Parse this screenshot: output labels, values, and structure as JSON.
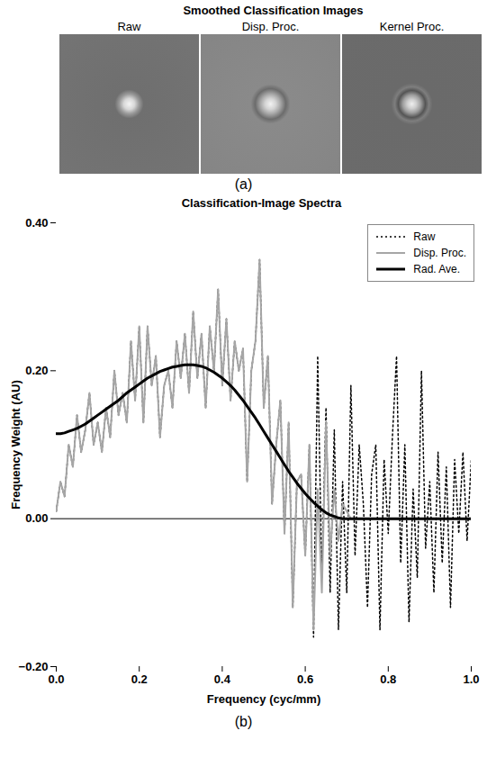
{
  "panel_a": {
    "title": "Smoothed Classification Images",
    "panels": [
      "Raw",
      "Disp. Proc.",
      "Kernel Proc."
    ],
    "caption": "(a)"
  },
  "chart_data": {
    "type": "line",
    "title": "Classification-Image Spectra",
    "x_label": "Frequency (cyc/mm)",
    "y_label": "Frequency Weight (AU)",
    "caption": "(b)",
    "xlim": [
      0,
      1
    ],
    "xticks": [
      0,
      0.2,
      0.4,
      0.6,
      0.8,
      1
    ],
    "ylim": [
      -0.2,
      0.4
    ],
    "yticks": [
      -0.2,
      0,
      0.2,
      0.4
    ],
    "grid": false,
    "legend": "top-right",
    "x": [
      0,
      0.01,
      0.02,
      0.03,
      0.04,
      0.05,
      0.06,
      0.07,
      0.08,
      0.09,
      0.1,
      0.11,
      0.12,
      0.13,
      0.14,
      0.15,
      0.16,
      0.17,
      0.18,
      0.19,
      0.2,
      0.21,
      0.22,
      0.23,
      0.24,
      0.25,
      0.26,
      0.27,
      0.28,
      0.29,
      0.3,
      0.31,
      0.32,
      0.33,
      0.34,
      0.35,
      0.36,
      0.37,
      0.38,
      0.39,
      0.4,
      0.41,
      0.42,
      0.43,
      0.44,
      0.45,
      0.46,
      0.47,
      0.48,
      0.49,
      0.5,
      0.51,
      0.52,
      0.53,
      0.54,
      0.55,
      0.56,
      0.57,
      0.58,
      0.59,
      0.6,
      0.61,
      0.62,
      0.63,
      0.64,
      0.65,
      0.66,
      0.67,
      0.68,
      0.69,
      0.7,
      0.71,
      0.72,
      0.73,
      0.74,
      0.75,
      0.76,
      0.77,
      0.78,
      0.79,
      0.8,
      0.81,
      0.82,
      0.83,
      0.84,
      0.85,
      0.86,
      0.87,
      0.88,
      0.89,
      0.9,
      0.91,
      0.92,
      0.93,
      0.94,
      0.95,
      0.96,
      0.97,
      0.98,
      0.99,
      1
    ],
    "series": [
      {
        "name": "Raw",
        "color": "#000000",
        "line_style": "dotted",
        "values": [
          0.01,
          0.05,
          0.03,
          0.1,
          0.07,
          0.14,
          0.09,
          0.12,
          0.17,
          0.1,
          0.13,
          0.09,
          0.15,
          0.11,
          0.2,
          0.14,
          0.17,
          0.13,
          0.24,
          0.16,
          0.26,
          0.13,
          0.26,
          0.18,
          0.22,
          0.11,
          0.18,
          0.2,
          0.15,
          0.24,
          0.19,
          0.25,
          0.17,
          0.28,
          0.19,
          0.25,
          0.15,
          0.26,
          0.2,
          0.31,
          0.18,
          0.27,
          0.16,
          0.24,
          0.2,
          0.23,
          0.05,
          0.2,
          0.24,
          0.35,
          0.15,
          0.22,
          0.02,
          0.1,
          0.16,
          -0.02,
          0.13,
          -0.12,
          0.05,
          0.06,
          -0.05,
          0.1,
          -0.16,
          0.22,
          -0.08,
          0.15,
          -0.1,
          0.12,
          -0.15,
          0.05,
          -0.1,
          0.18,
          -0.05,
          0.1,
          0.02,
          -0.12,
          0.06,
          0.1,
          -0.15,
          0.08,
          -0.02,
          0.11,
          0.22,
          -0.06,
          0.1,
          -0.14,
          0.04,
          -0.08,
          0.2,
          -0.04,
          0.05,
          -0.1,
          0.09,
          -0.06,
          0.07,
          -0.12,
          0.08,
          -0.02,
          0.09,
          -0.03,
          0.08
        ]
      },
      {
        "name": "Disp. Proc.",
        "color": "#a6a6a6",
        "line_style": "solid",
        "values": [
          0.01,
          0.05,
          0.03,
          0.1,
          0.07,
          0.14,
          0.09,
          0.12,
          0.17,
          0.1,
          0.13,
          0.09,
          0.15,
          0.11,
          0.2,
          0.14,
          0.17,
          0.13,
          0.24,
          0.16,
          0.26,
          0.13,
          0.26,
          0.18,
          0.22,
          0.11,
          0.18,
          0.2,
          0.15,
          0.24,
          0.19,
          0.25,
          0.17,
          0.28,
          0.19,
          0.25,
          0.15,
          0.26,
          0.2,
          0.31,
          0.18,
          0.27,
          0.16,
          0.24,
          0.2,
          0.23,
          0.05,
          0.2,
          0.24,
          0.35,
          0.15,
          0.22,
          0.02,
          0.1,
          0.16,
          -0.02,
          0.13,
          -0.12,
          0.05,
          0.06,
          -0.05,
          0.1,
          -0.15,
          0.04,
          -0.1,
          0.13,
          -0.05,
          0.04,
          -0.03,
          0.02,
          0.01,
          0,
          0,
          0,
          0,
          0,
          0,
          0,
          0,
          0,
          0,
          0,
          0,
          0,
          0,
          0,
          0,
          0,
          0,
          0,
          0,
          0,
          0,
          0,
          0,
          0,
          0,
          0,
          0,
          0,
          0
        ]
      },
      {
        "name": "Rad. Ave.",
        "color": "#000000",
        "line_style": "solid",
        "values": [
          0.115,
          0.115,
          0.116,
          0.118,
          0.12,
          0.122,
          0.125,
          0.128,
          0.132,
          0.136,
          0.14,
          0.144,
          0.148,
          0.152,
          0.156,
          0.16,
          0.165,
          0.17,
          0.174,
          0.178,
          0.182,
          0.186,
          0.19,
          0.193,
          0.196,
          0.199,
          0.201,
          0.203,
          0.205,
          0.206,
          0.207,
          0.208,
          0.208,
          0.208,
          0.207,
          0.206,
          0.204,
          0.201,
          0.198,
          0.194,
          0.19,
          0.185,
          0.18,
          0.174,
          0.167,
          0.16,
          0.152,
          0.144,
          0.136,
          0.127,
          0.118,
          0.109,
          0.1,
          0.091,
          0.082,
          0.073,
          0.064,
          0.056,
          0.048,
          0.041,
          0.034,
          0.028,
          0.022,
          0.017,
          0.012,
          0.008,
          0.005,
          0.003,
          0.001,
          0,
          0,
          0,
          0,
          0,
          0,
          0,
          0,
          0,
          0,
          0,
          0,
          0,
          0,
          0,
          0,
          0,
          0,
          0,
          0,
          0,
          0,
          0,
          0,
          0,
          0,
          0,
          0,
          0,
          0,
          0,
          0
        ]
      }
    ]
  }
}
